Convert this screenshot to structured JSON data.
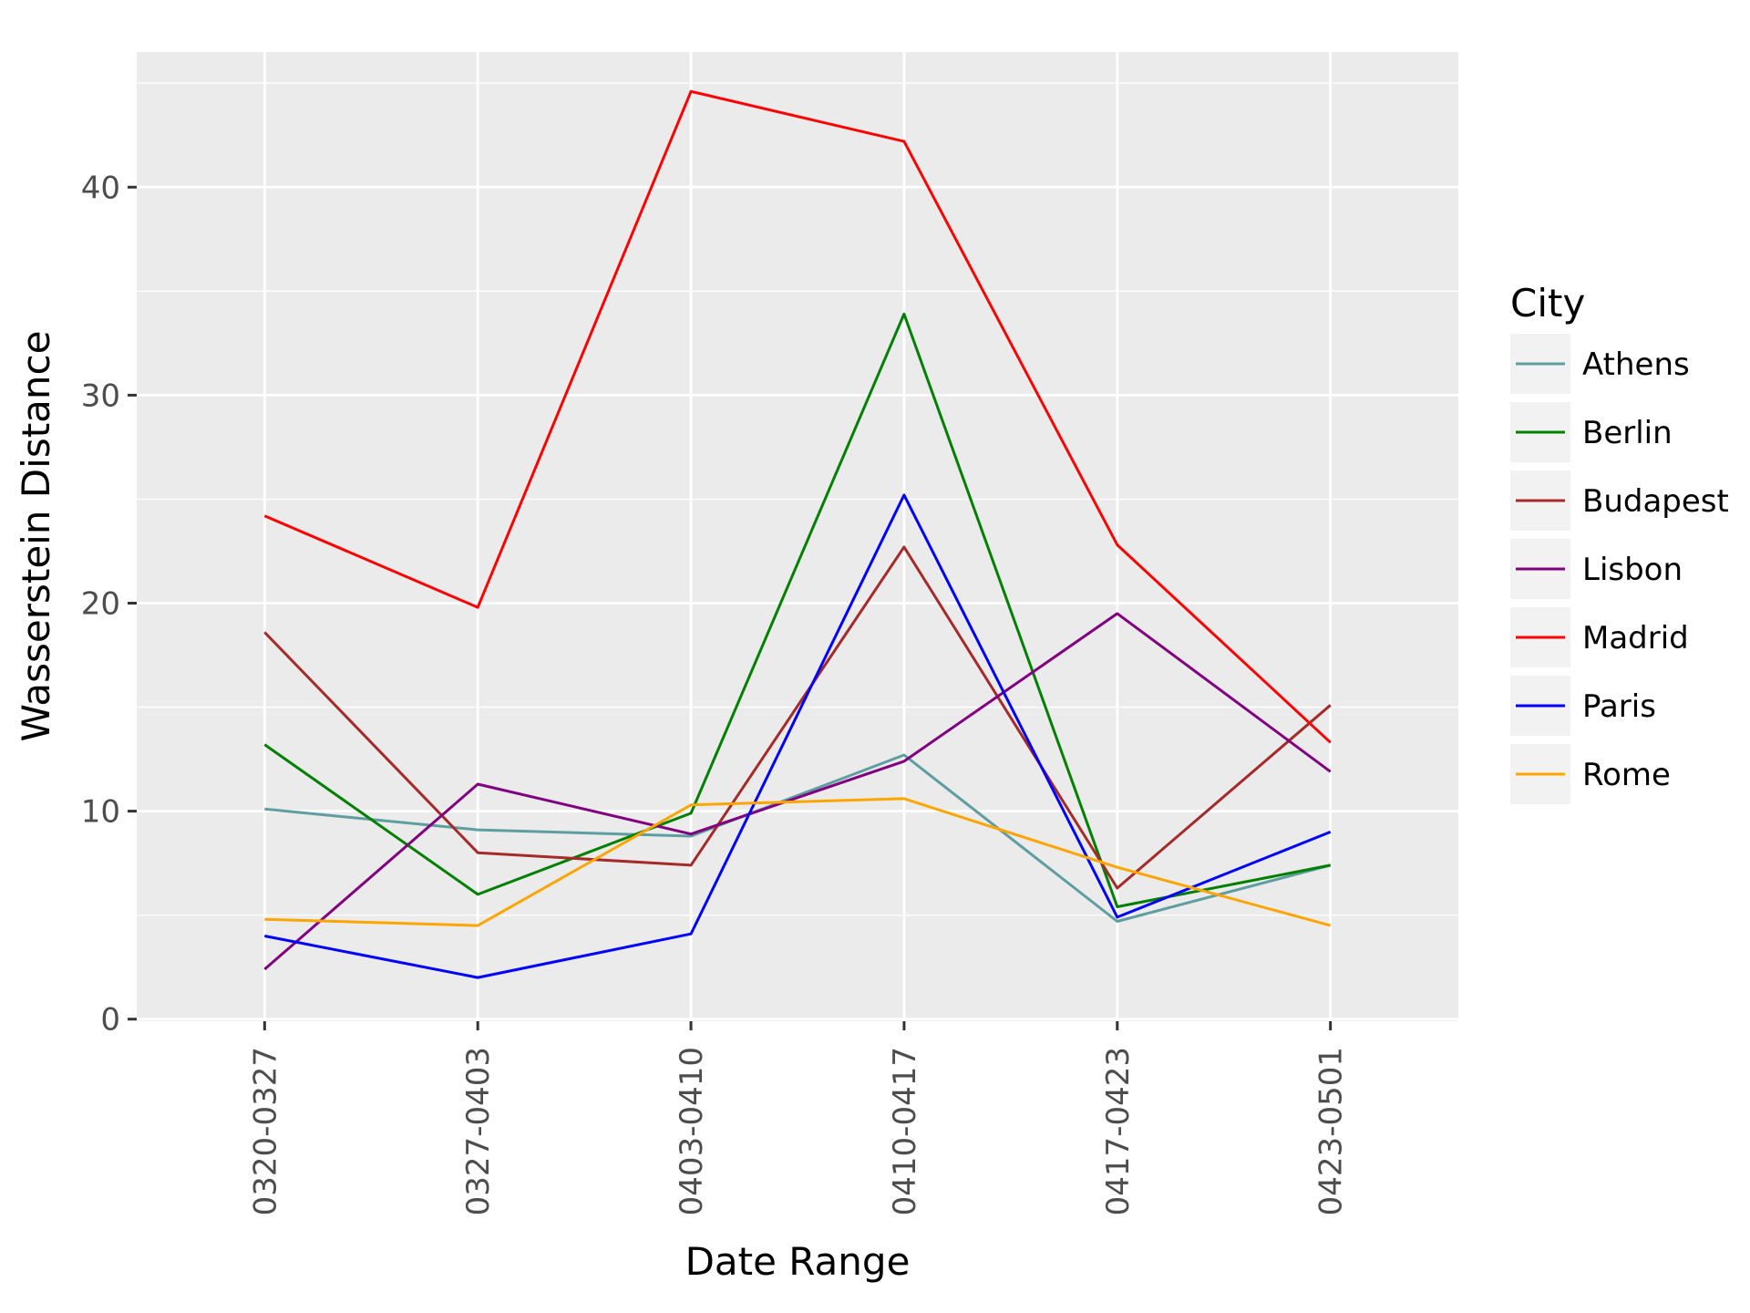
{
  "chart_data": {
    "type": "line",
    "xlabel": "Date Range",
    "ylabel": "Wasserstein Distance",
    "categories": [
      "0320-0327",
      "0327-0403",
      "0403-0410",
      "0410-0417",
      "0417-0423",
      "0423-0501"
    ],
    "yticks": [
      0,
      10,
      20,
      30,
      40
    ],
    "ylim": [
      -0.1,
      46.5
    ],
    "grid": true,
    "legend": {
      "title": "City",
      "position": "right"
    },
    "series": [
      {
        "name": "Athens",
        "color": "#5f9ea0",
        "values": [
          10.1,
          9.1,
          8.8,
          12.7,
          4.7,
          7.4
        ]
      },
      {
        "name": "Berlin",
        "color": "#008000",
        "values": [
          13.2,
          6.0,
          9.9,
          33.9,
          5.4,
          7.4
        ]
      },
      {
        "name": "Budapest",
        "color": "#a52a2a",
        "values": [
          18.6,
          8.0,
          7.4,
          22.7,
          6.3,
          15.1
        ]
      },
      {
        "name": "Lisbon",
        "color": "#800080",
        "values": [
          2.4,
          11.3,
          8.9,
          12.4,
          19.5,
          11.9
        ]
      },
      {
        "name": "Madrid",
        "color": "#ff0000",
        "values": [
          24.2,
          19.8,
          44.6,
          42.2,
          22.8,
          13.3
        ]
      },
      {
        "name": "Paris",
        "color": "#0000ff",
        "values": [
          4.0,
          2.0,
          4.1,
          25.2,
          4.9,
          9.0
        ]
      },
      {
        "name": "Rome",
        "color": "#ffa500",
        "values": [
          4.8,
          4.5,
          10.3,
          10.6,
          7.3,
          4.5
        ]
      }
    ]
  }
}
